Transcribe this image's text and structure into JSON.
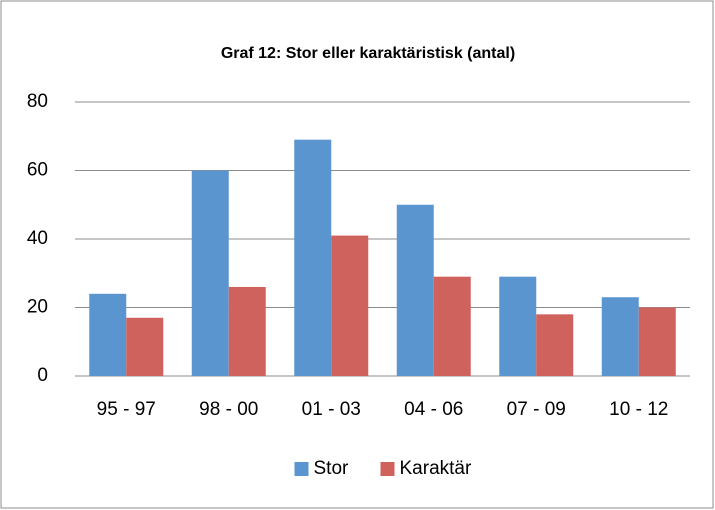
{
  "chart_data": {
    "type": "bar",
    "title": "Graf 12: Stor eller karaktäristisk (antal)",
    "categories": [
      "95 - 97",
      "98 - 00",
      "01 - 03",
      "04 - 06",
      "07 - 09",
      "10 - 12"
    ],
    "series": [
      {
        "name": "Stor",
        "color": "#5b95cf",
        "values": [
          24,
          60,
          69,
          50,
          29,
          23
        ]
      },
      {
        "name": "Karaktär",
        "color": "#cf625d",
        "values": [
          17,
          26,
          41,
          29,
          18,
          20
        ]
      }
    ],
    "ylim": [
      0,
      80
    ],
    "yticks": [
      0,
      20,
      40,
      60,
      80
    ],
    "grid": true,
    "legend": "bottom"
  }
}
